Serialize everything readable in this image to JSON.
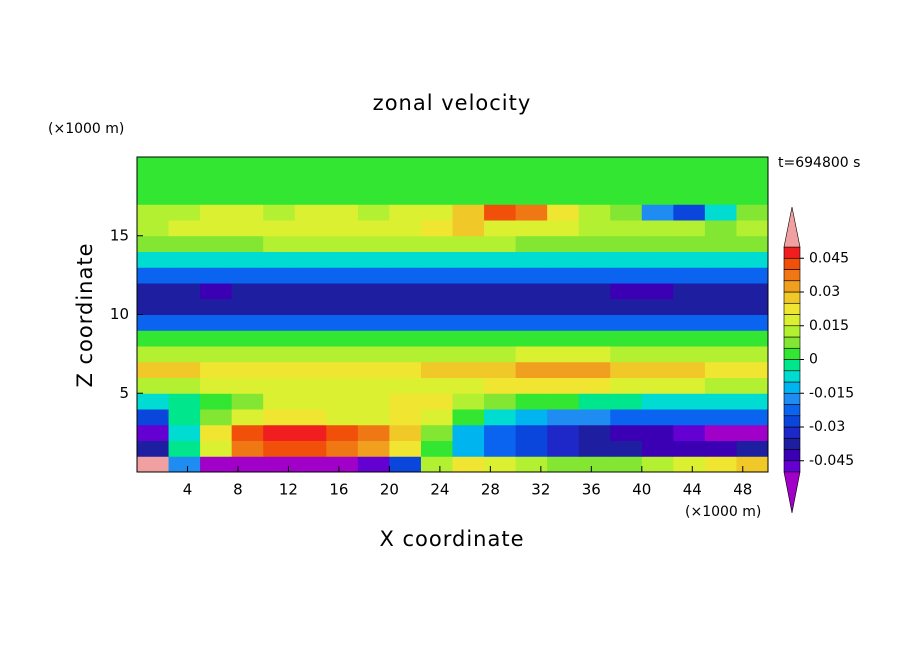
{
  "chart_data": {
    "type": "contour",
    "title": "zonal velocity",
    "xlabel": "X coordinate",
    "ylabel": "Z coordinate",
    "xunit": "(×1000 m)",
    "yunit": "(×1000 m)",
    "annotation": "t=694800 s",
    "xlim": [
      0,
      50
    ],
    "ylim": [
      0,
      20
    ],
    "xticks": [
      4,
      8,
      12,
      16,
      20,
      24,
      28,
      32,
      36,
      40,
      44,
      48
    ],
    "yticks": [
      5,
      10,
      15
    ],
    "x": [
      1.25,
      3.75,
      6.25,
      8.75,
      11.25,
      13.75,
      16.25,
      18.75,
      21.25,
      23.75,
      26.25,
      28.75,
      31.25,
      33.75,
      36.25,
      38.75,
      41.25,
      43.75,
      46.25,
      48.75
    ],
    "z": [
      0.5,
      1.5,
      2.5,
      3.5,
      4.5,
      5.5,
      6.5,
      7.5,
      8.5,
      9.5,
      10.5,
      11.5,
      12.5,
      13.5,
      14.5,
      15.5,
      16.5,
      17.5,
      18.5,
      19.5
    ],
    "values": [
      [
        0.052,
        -0.02,
        -0.055,
        -0.055,
        -0.055,
        -0.055,
        -0.055,
        -0.05,
        -0.03,
        0.01,
        0.02,
        0.015,
        0.01,
        0.005,
        0.005,
        0.005,
        0.01,
        0.015,
        0.02,
        0.025
      ],
      [
        -0.04,
        -0.005,
        0.015,
        0.035,
        0.04,
        0.04,
        0.035,
        0.03,
        0.02,
        0.0,
        -0.015,
        -0.025,
        -0.03,
        -0.035,
        -0.04,
        -0.04,
        -0.042,
        -0.045,
        -0.045,
        -0.04
      ],
      [
        -0.048,
        -0.01,
        0.02,
        0.04,
        0.048,
        0.045,
        0.042,
        0.035,
        0.025,
        0.005,
        -0.015,
        -0.025,
        -0.03,
        -0.035,
        -0.04,
        -0.042,
        -0.045,
        -0.05,
        -0.052,
        -0.052
      ],
      [
        -0.03,
        -0.005,
        0.005,
        0.015,
        0.02,
        0.02,
        0.018,
        0.018,
        0.02,
        0.015,
        0.0,
        -0.01,
        -0.015,
        -0.02,
        -0.02,
        -0.025,
        -0.025,
        -0.025,
        -0.025,
        -0.025
      ],
      [
        -0.008,
        -0.003,
        0.002,
        0.008,
        0.015,
        0.015,
        0.015,
        0.018,
        0.02,
        0.02,
        0.012,
        0.005,
        0.002,
        0.0,
        -0.002,
        -0.004,
        -0.006,
        -0.008,
        -0.01,
        -0.01
      ],
      [
        0.012,
        0.014,
        0.015,
        0.016,
        0.018,
        0.018,
        0.018,
        0.018,
        0.018,
        0.018,
        0.018,
        0.02,
        0.02,
        0.02,
        0.02,
        0.018,
        0.016,
        0.015,
        0.014,
        0.012
      ],
      [
        0.025,
        0.025,
        0.022,
        0.022,
        0.022,
        0.022,
        0.022,
        0.022,
        0.022,
        0.025,
        0.026,
        0.028,
        0.03,
        0.031,
        0.031,
        0.028,
        0.026,
        0.025,
        0.024,
        0.022
      ],
      [
        0.012,
        0.012,
        0.012,
        0.012,
        0.012,
        0.012,
        0.012,
        0.012,
        0.012,
        0.012,
        0.013,
        0.014,
        0.015,
        0.015,
        0.015,
        0.014,
        0.013,
        0.012,
        0.012,
        0.012
      ],
      [
        0.003,
        0.003,
        0.003,
        0.003,
        0.003,
        0.003,
        0.003,
        0.003,
        0.003,
        0.003,
        0.003,
        0.003,
        0.003,
        0.003,
        0.003,
        0.003,
        0.003,
        0.003,
        0.003,
        0.003
      ],
      [
        -0.025,
        -0.025,
        -0.025,
        -0.025,
        -0.025,
        -0.025,
        -0.025,
        -0.025,
        -0.025,
        -0.025,
        -0.025,
        -0.025,
        -0.025,
        -0.025,
        -0.025,
        -0.025,
        -0.025,
        -0.025,
        -0.025,
        -0.025
      ],
      [
        -0.04,
        -0.04,
        -0.04,
        -0.04,
        -0.04,
        -0.04,
        -0.04,
        -0.04,
        -0.04,
        -0.04,
        -0.04,
        -0.04,
        -0.04,
        -0.04,
        -0.04,
        -0.04,
        -0.04,
        -0.04,
        -0.04,
        -0.04
      ],
      [
        -0.038,
        -0.038,
        -0.042,
        -0.038,
        -0.038,
        -0.038,
        -0.038,
        -0.038,
        -0.038,
        -0.038,
        -0.038,
        -0.038,
        -0.038,
        -0.038,
        -0.04,
        -0.042,
        -0.042,
        -0.04,
        -0.038,
        -0.038
      ],
      [
        -0.025,
        -0.025,
        -0.025,
        -0.025,
        -0.025,
        -0.025,
        -0.025,
        -0.025,
        -0.025,
        -0.025,
        -0.025,
        -0.025,
        -0.025,
        -0.025,
        -0.025,
        -0.025,
        -0.025,
        -0.025,
        -0.025,
        -0.025
      ],
      [
        -0.01,
        -0.01,
        -0.01,
        -0.01,
        -0.01,
        -0.01,
        -0.01,
        -0.01,
        -0.01,
        -0.01,
        -0.01,
        -0.01,
        -0.01,
        -0.01,
        -0.01,
        -0.01,
        -0.01,
        -0.01,
        -0.01,
        -0.01
      ],
      [
        0.008,
        0.008,
        0.008,
        0.008,
        0.01,
        0.01,
        0.01,
        0.01,
        0.01,
        0.01,
        0.01,
        0.01,
        0.008,
        0.008,
        0.008,
        0.008,
        0.008,
        0.008,
        0.008,
        0.008
      ],
      [
        0.012,
        0.015,
        0.018,
        0.018,
        0.015,
        0.018,
        0.018,
        0.015,
        0.018,
        0.02,
        0.025,
        0.018,
        0.015,
        0.015,
        0.012,
        0.012,
        0.01,
        0.01,
        0.008,
        0.01
      ],
      [
        0.01,
        0.012,
        0.015,
        0.015,
        0.012,
        0.015,
        0.015,
        0.012,
        0.015,
        0.015,
        0.025,
        0.04,
        0.035,
        0.02,
        0.01,
        0.005,
        -0.02,
        -0.03,
        -0.01,
        0.005
      ],
      [
        0.001,
        0.001,
        0.001,
        0.001,
        0.001,
        0.001,
        0.001,
        0.001,
        0.001,
        0.001,
        0.001,
        0.001,
        0.001,
        0.001,
        0.001,
        0.001,
        0.001,
        0.001,
        0.001,
        0.001
      ],
      [
        0.002,
        0.002,
        0.002,
        0.002,
        0.002,
        0.002,
        0.002,
        0.002,
        0.002,
        0.002,
        0.002,
        0.002,
        0.002,
        0.002,
        0.002,
        0.002,
        0.002,
        0.002,
        0.002,
        0.002
      ],
      [
        0.002,
        0.002,
        0.002,
        0.002,
        0.002,
        0.002,
        0.002,
        0.002,
        0.002,
        0.002,
        0.002,
        0.002,
        0.002,
        0.002,
        0.002,
        0.002,
        0.002,
        0.002,
        0.002,
        0.002
      ]
    ],
    "levels": [
      -0.05,
      -0.045,
      -0.04,
      -0.035,
      -0.03,
      -0.025,
      -0.02,
      -0.015,
      -0.01,
      -0.005,
      0,
      0.005,
      0.01,
      0.015,
      0.02,
      0.025,
      0.03,
      0.035,
      0.04,
      0.045,
      0.05
    ],
    "colors": [
      "#a000c8",
      "#6400d2",
      "#3c00b4",
      "#1e1ea0",
      "#1e28c8",
      "#0a46dc",
      "#0a64f0",
      "#1e8cf0",
      "#00b4f0",
      "#00dcd2",
      "#00e68c",
      "#32e632",
      "#82e632",
      "#b4f032",
      "#dcf032",
      "#f0e632",
      "#f0c828",
      "#f0a01e",
      "#f07814",
      "#f0500a",
      "#f01e1e",
      "#f0a0a0"
    ],
    "colorbar_ticks": [
      -0.045,
      -0.03,
      -0.015,
      0,
      0.015,
      0.03,
      0.045
    ]
  }
}
